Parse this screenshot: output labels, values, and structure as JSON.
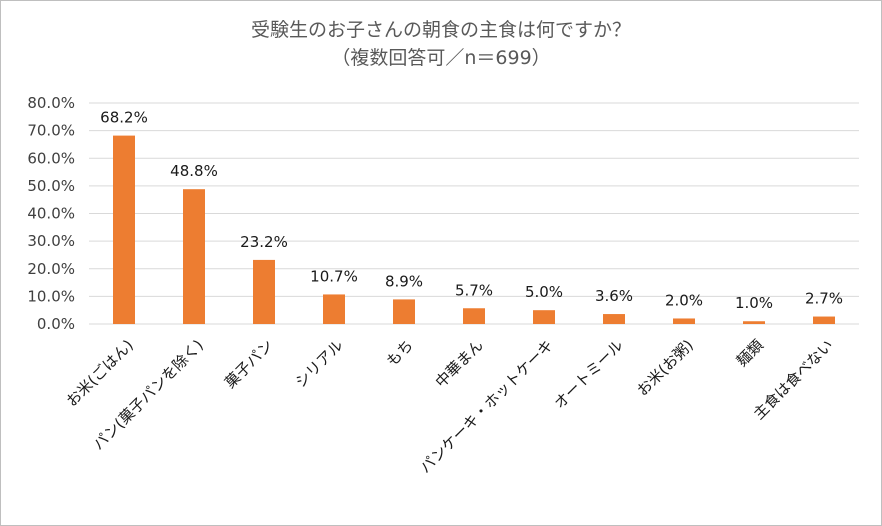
{
  "chart_data": {
    "type": "bar",
    "title": "受験生のお子さんの朝食の主食は何ですか？",
    "subtitle": "（複数回答可／n＝699）",
    "categories": [
      "お米(ごはん)",
      "パン(菓子パンを除く)",
      "菓子パン",
      "シリアル",
      "もち",
      "中華まん",
      "パンケーキ・ホットケーキ",
      "オートミール",
      "お米(お粥)",
      "麺類",
      "主食は食べない"
    ],
    "values": [
      68.2,
      48.8,
      23.2,
      10.7,
      8.9,
      5.7,
      5.0,
      3.6,
      2.0,
      1.0,
      2.7
    ],
    "data_labels": [
      "68.2%",
      "48.8%",
      "23.2%",
      "10.7%",
      "8.9%",
      "5.7%",
      "5.0%",
      "3.6%",
      "2.0%",
      "1.0%",
      "2.7%"
    ],
    "yticks": [
      "0.0%",
      "10.0%",
      "20.0%",
      "30.0%",
      "40.0%",
      "50.0%",
      "60.0%",
      "70.0%",
      "80.0%"
    ],
    "ylim": [
      0,
      80
    ],
    "grid": true,
    "bar_color": "#ED7D31",
    "grid_color": "#D9D9D9"
  }
}
